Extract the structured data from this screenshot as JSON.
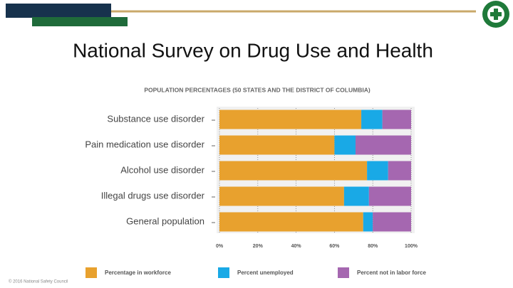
{
  "slide": {
    "title": "National Survey on Drug Use and Health",
    "footer": "© 2016 National Safety Council"
  },
  "chart_data": {
    "type": "bar",
    "orientation": "horizontal",
    "stacked": true,
    "title": "POPULATION PERCENTAGES (50 STATES AND THE DISTRICT OF COLUMBIA)",
    "categories": [
      "Substance use disorder",
      "Pain medication use disorder",
      "Alcohol use disorder",
      "Illegal drugs use disorder",
      "General population"
    ],
    "series": [
      {
        "name": "Percentage in workforce",
        "color": "#e8a12e",
        "values": [
          74,
          60,
          77,
          65,
          75
        ]
      },
      {
        "name": "Percent unemployed",
        "color": "#19a9e6",
        "values": [
          11,
          11,
          11,
          13,
          5
        ]
      },
      {
        "name": "Percent not in labor force",
        "color": "#a567b0",
        "values": [
          15,
          29,
          12,
          22,
          20
        ]
      }
    ],
    "xlim": [
      0,
      100
    ],
    "xticks": [
      {
        "value": 0,
        "label": "0%"
      },
      {
        "value": 20,
        "label": "20%"
      },
      {
        "value": 40,
        "label": "40%"
      },
      {
        "value": 60,
        "label": "60%"
      },
      {
        "value": 80,
        "label": "80%"
      },
      {
        "value": 100,
        "label": "100%"
      }
    ],
    "grid": true
  }
}
